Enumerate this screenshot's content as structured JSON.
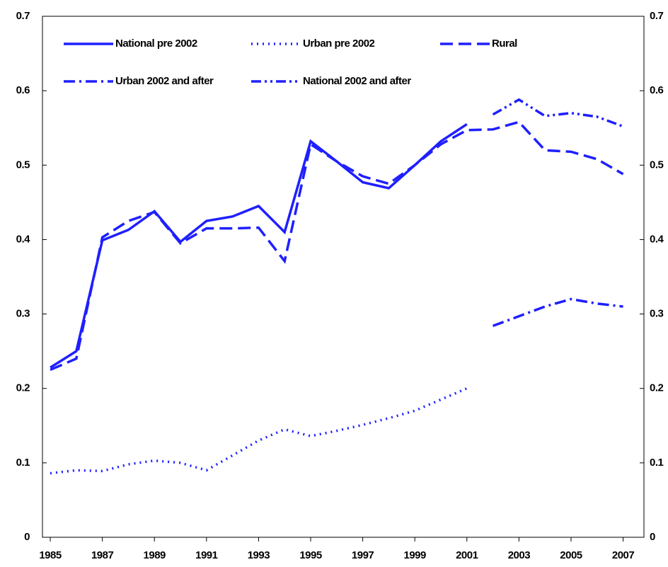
{
  "chart_data": {
    "type": "line",
    "x": [
      1985,
      1986,
      1987,
      1988,
      1989,
      1990,
      1991,
      1992,
      1993,
      1994,
      1995,
      1996,
      1997,
      1998,
      1999,
      2000,
      2001,
      2002,
      2003,
      2004,
      2005,
      2006,
      2007
    ],
    "xlim": [
      1984.7,
      2007.8
    ],
    "xticks": [
      1985,
      1987,
      1989,
      1991,
      1993,
      1995,
      1997,
      1999,
      2001,
      2003,
      2005,
      2007
    ],
    "ylim": [
      0,
      0.7
    ],
    "yticks": [
      0,
      0.1,
      0.2,
      0.3,
      0.4,
      0.5,
      0.6,
      0.7
    ],
    "y2lim": [
      0,
      0.7
    ],
    "y2ticks": [
      0,
      0.1,
      0.2,
      0.3,
      0.4,
      0.5,
      0.6,
      0.7
    ],
    "grid": false,
    "legend": "top",
    "series": [
      {
        "name": "National pre 2002",
        "color": "#1f1fff",
        "style": "solid",
        "values": [
          0.228,
          0.25,
          0.399,
          0.413,
          0.438,
          0.397,
          0.425,
          0.431,
          0.445,
          0.41,
          0.532,
          0.505,
          0.477,
          0.469,
          0.5,
          0.532,
          0.555,
          null,
          null,
          null,
          null,
          null,
          null
        ]
      },
      {
        "name": "Urban pre 2002",
        "color": "#1f1fff",
        "style": "dotted",
        "values": [
          0.086,
          0.09,
          0.089,
          0.098,
          0.103,
          0.1,
          0.09,
          0.11,
          0.13,
          0.145,
          0.136,
          0.143,
          0.151,
          0.16,
          0.17,
          0.185,
          0.2,
          null,
          null,
          null,
          null,
          null,
          null
        ]
      },
      {
        "name": "Rural",
        "color": "#1f1fff",
        "style": "dashed",
        "values": [
          0.225,
          0.24,
          0.403,
          0.425,
          0.437,
          0.395,
          0.415,
          0.415,
          0.416,
          0.371,
          0.528,
          0.505,
          0.485,
          0.475,
          0.5,
          0.528,
          0.547,
          0.548,
          0.558,
          0.52,
          0.518,
          0.508,
          0.488
        ]
      },
      {
        "name": "Urban 2002 and after",
        "color": "#1f1fff",
        "style": "dashdot",
        "values": [
          null,
          null,
          null,
          null,
          null,
          null,
          null,
          null,
          null,
          null,
          null,
          null,
          null,
          null,
          null,
          null,
          null,
          0.284,
          0.297,
          0.31,
          0.32,
          0.314,
          0.31
        ]
      },
      {
        "name": "National 2002 and after",
        "color": "#1f1fff",
        "style": "dashdotdot",
        "values": [
          null,
          null,
          null,
          null,
          null,
          null,
          null,
          null,
          null,
          null,
          null,
          null,
          null,
          null,
          null,
          null,
          null,
          0.568,
          0.588,
          0.566,
          0.57,
          0.565,
          0.552
        ]
      }
    ]
  }
}
